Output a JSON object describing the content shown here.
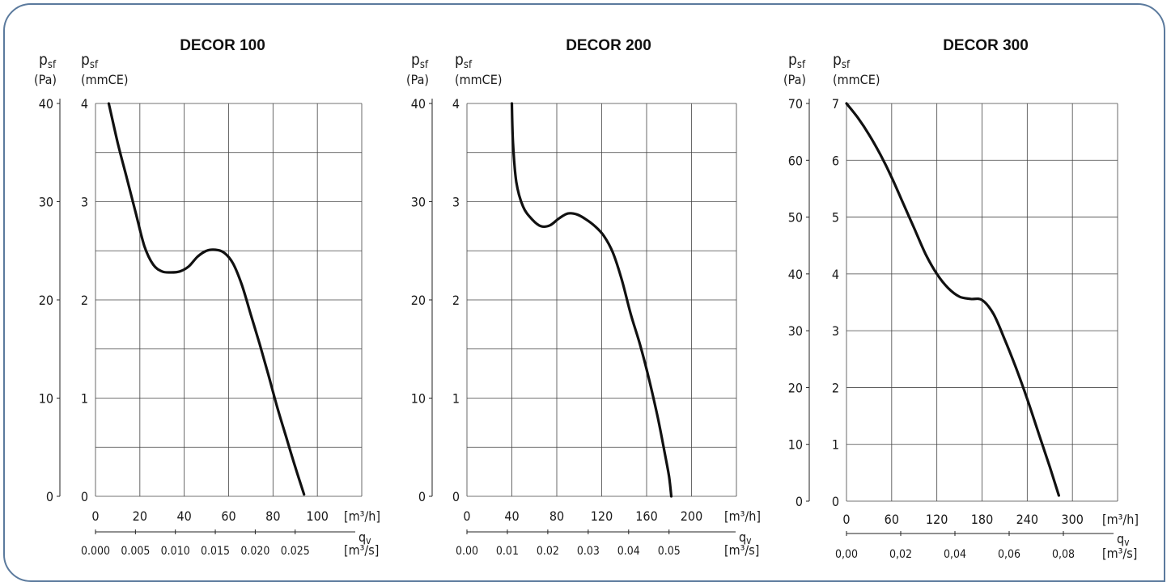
{
  "chart_data": [
    {
      "type": "line",
      "title": "DECOR 100",
      "y_label_left": "psf",
      "y_unit_left": "(Pa)",
      "y_label_right": "psf",
      "y_unit_right": "(mmCE)",
      "x_unit": "[m³/h]",
      "x_label": "qv",
      "x2_unit": "[m³/s]",
      "xlim": [
        0,
        120
      ],
      "ylim": [
        0,
        40
      ],
      "grid": true,
      "x_ticks": [
        "0",
        "20",
        "40",
        "60",
        "80",
        "100"
      ],
      "x_tick_values": [
        0,
        20,
        40,
        60,
        80,
        100
      ],
      "y_ticks_left": [
        "0",
        "10",
        "20",
        "30",
        "40"
      ],
      "y_tick_values_left": [
        0,
        10,
        20,
        30,
        40
      ],
      "y_ticks_right": [
        "0",
        "1",
        "2",
        "3",
        "4"
      ],
      "y_tick_values_right": [
        0,
        10,
        20,
        30,
        40
      ],
      "x2_ticks": [
        "0.000",
        "0.005",
        "0.010",
        "0.015",
        "0.020",
        "0.025"
      ],
      "x2_tick_values": [
        0,
        18,
        36,
        54,
        72,
        90
      ],
      "series": [
        {
          "x": [
            6,
            10,
            14,
            18,
            22,
            26,
            30,
            34,
            38,
            42,
            46,
            50,
            54,
            58,
            62,
            66,
            70,
            74,
            78,
            82,
            86,
            90,
            94
          ],
          "y": [
            40,
            36,
            32.5,
            29,
            25.5,
            23.6,
            22.9,
            22.8,
            22.9,
            23.4,
            24.4,
            25,
            25.1,
            24.8,
            23.7,
            21.5,
            18.5,
            15.5,
            12.3,
            9,
            6,
            3,
            0.2
          ]
        }
      ]
    },
    {
      "type": "line",
      "title": "DECOR 200",
      "y_label_left": "psf",
      "y_unit_left": "(Pa)",
      "y_label_right": "psf",
      "y_unit_right": "(mmCE)",
      "x_unit": "[m³/h]",
      "x_label": "qv",
      "x2_unit": "[m³/s]",
      "xlim": [
        0,
        240
      ],
      "ylim": [
        0,
        40
      ],
      "grid": true,
      "x_ticks": [
        "0",
        "40",
        "80",
        "120",
        "160",
        "200"
      ],
      "x_tick_values": [
        0,
        40,
        80,
        120,
        160,
        200
      ],
      "y_ticks_left": [
        "0",
        "10",
        "20",
        "30",
        "40"
      ],
      "y_tick_values_left": [
        0,
        10,
        20,
        30,
        40
      ],
      "y_ticks_right": [
        "0",
        "1",
        "2",
        "3",
        "4"
      ],
      "y_tick_values_right": [
        0,
        10,
        20,
        30,
        40
      ],
      "x2_ticks": [
        "0.00",
        "0.01",
        "0.02",
        "0.03",
        "0.04",
        "0.05"
      ],
      "x2_tick_values": [
        0,
        36,
        72,
        108,
        144,
        180
      ],
      "series": [
        {
          "x": [
            40,
            41,
            44,
            50,
            58,
            66,
            74,
            82,
            90,
            98,
            106,
            114,
            122,
            130,
            138,
            146,
            154,
            162,
            170,
            176,
            180,
            182
          ],
          "y": [
            40,
            36,
            32,
            29.5,
            28.2,
            27.5,
            27.6,
            28.3,
            28.8,
            28.7,
            28.2,
            27.5,
            26.5,
            24.8,
            22,
            18.5,
            15.5,
            12,
            8,
            4.5,
            2,
            0
          ]
        }
      ]
    },
    {
      "type": "line",
      "title": "DECOR 300",
      "y_label_left": "psf",
      "y_unit_left": "(Pa)",
      "y_label_right": "psf",
      "y_unit_right": "(mmCE)",
      "x_unit": "[m³/h]",
      "x_label": "qv",
      "x2_unit": "[m³/s]",
      "xlim": [
        0,
        360
      ],
      "ylim": [
        0,
        70
      ],
      "grid": true,
      "x_ticks": [
        "0",
        "60",
        "120",
        "180",
        "240",
        "300"
      ],
      "x_tick_values": [
        0,
        60,
        120,
        180,
        240,
        300
      ],
      "y_ticks_left": [
        "0",
        "10",
        "20",
        "30",
        "40",
        "50",
        "60",
        "70"
      ],
      "y_tick_values_left": [
        0,
        10,
        20,
        30,
        40,
        50,
        60,
        70
      ],
      "y_ticks_right": [
        "0",
        "1",
        "2",
        "3",
        "4",
        "5",
        "6",
        "7"
      ],
      "y_tick_values_right": [
        0,
        10,
        20,
        30,
        40,
        50,
        60,
        70
      ],
      "x2_ticks": [
        "0,00",
        "0,02",
        "0,04",
        "0,06",
        "0,08"
      ],
      "x2_tick_values": [
        0,
        72,
        144,
        216,
        288
      ],
      "series": [
        {
          "x": [
            0,
            15,
            30,
            45,
            60,
            75,
            90,
            105,
            120,
            135,
            150,
            165,
            180,
            195,
            210,
            225,
            240,
            255,
            270,
            282
          ],
          "y": [
            70,
            67.5,
            64.5,
            61,
            57,
            52.5,
            48,
            43.5,
            40,
            37.5,
            36,
            35.6,
            35.4,
            33,
            28.5,
            23.5,
            18,
            12,
            6,
            1
          ]
        }
      ]
    }
  ]
}
